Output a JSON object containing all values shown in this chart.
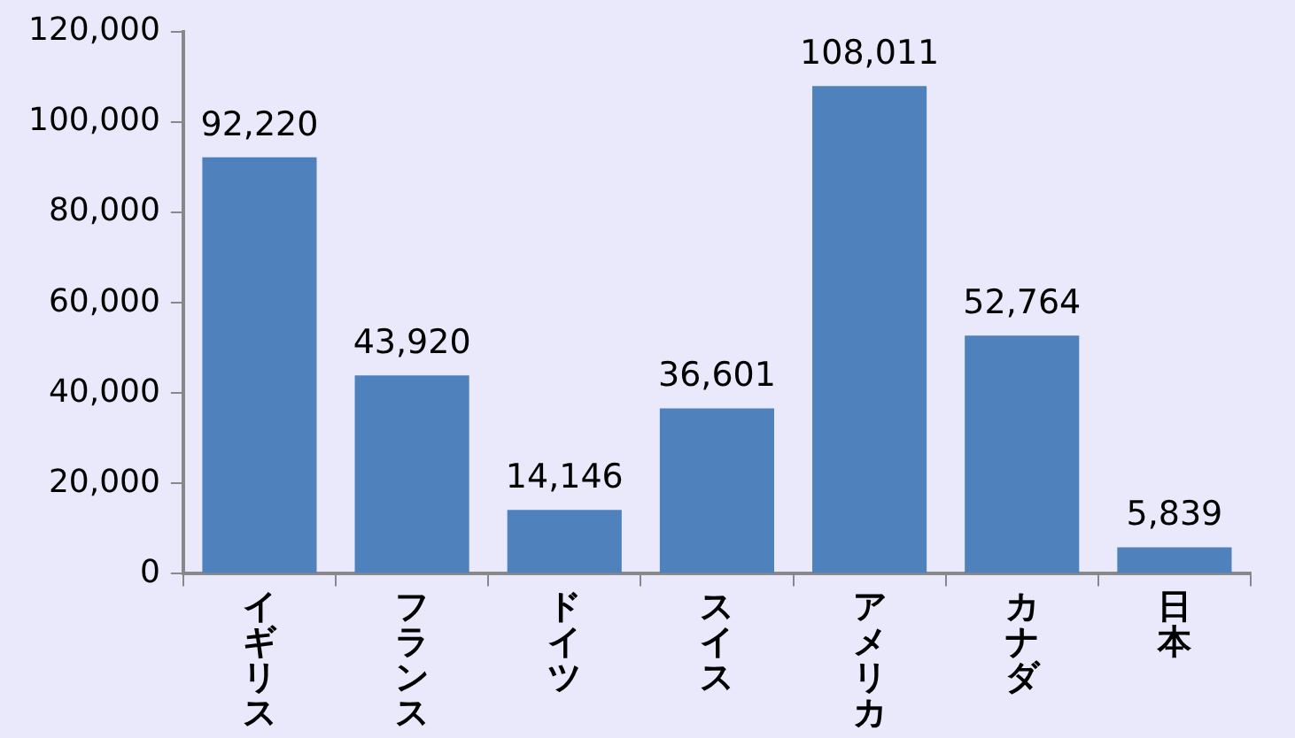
{
  "chart_data": {
    "type": "bar",
    "categories": [
      "イギリス",
      "フランス",
      "ドイツ",
      "スイス",
      "アメリカ",
      "カナダ",
      "日本"
    ],
    "values": [
      92220,
      43920,
      14146,
      36601,
      108011,
      52764,
      5839
    ],
    "value_labels": [
      "92,220",
      "43,920",
      "14,146",
      "36,601",
      "108,011",
      "52,764",
      "5,839"
    ],
    "color": "#4f81bd",
    "ylim": [
      0,
      120000
    ],
    "yticks": [
      {
        "value": 0,
        "label": "0"
      },
      {
        "value": 20000,
        "label": "20,000"
      },
      {
        "value": 40000,
        "label": "40,000"
      },
      {
        "value": 60000,
        "label": "60,000"
      },
      {
        "value": 80000,
        "label": "80,000"
      },
      {
        "value": 100000,
        "label": "100,000"
      },
      {
        "value": 120000,
        "label": "120,000"
      }
    ],
    "grid": false,
    "legend": false
  }
}
